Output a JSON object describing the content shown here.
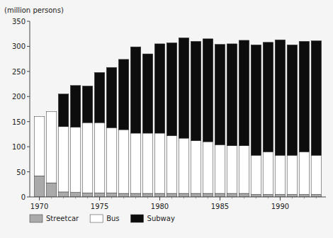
{
  "chart_data": {
    "type": "bar",
    "stacked": true,
    "ylabel": "(million persons)",
    "x": [
      1970,
      1971,
      1972,
      1973,
      1974,
      1975,
      1976,
      1977,
      1978,
      1979,
      1980,
      1981,
      1982,
      1983,
      1984,
      1985,
      1986,
      1987,
      1988,
      1989,
      1990,
      1991,
      1992,
      1993
    ],
    "series": [
      {
        "name": "Streetcar",
        "color": "#aaaaaa",
        "values": [
          42,
          28,
          10,
          9,
          8,
          8,
          8,
          7,
          7,
          7,
          7,
          7,
          7,
          7,
          7,
          7,
          7,
          7,
          5,
          5,
          5,
          5,
          5,
          5
        ]
      },
      {
        "name": "Bus",
        "color": "#ffffff",
        "values": [
          118,
          142,
          130,
          130,
          140,
          140,
          130,
          127,
          120,
          120,
          120,
          115,
          110,
          105,
          103,
          97,
          95,
          95,
          78,
          85,
          78,
          78,
          85,
          78
        ]
      },
      {
        "name": "Subway",
        "color": "#0d0d0d",
        "values": [
          0,
          0,
          65,
          83,
          73,
          100,
          120,
          140,
          172,
          158,
          178,
          185,
          200,
          198,
          205,
          200,
          203,
          210,
          220,
          218,
          230,
          220,
          220,
          228
        ]
      }
    ],
    "xlim": [
      1969.2,
      1993.8
    ],
    "xticks": [
      1970,
      1975,
      1980,
      1985,
      1990
    ],
    "ylim": [
      0,
      350
    ],
    "yticks": [
      0,
      50,
      100,
      150,
      200,
      250,
      300,
      350
    ],
    "grid": false,
    "legend": "bottom"
  }
}
